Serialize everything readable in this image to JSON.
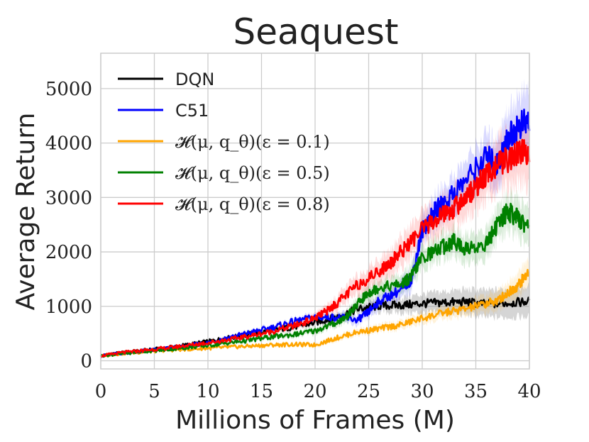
{
  "chart_data": {
    "type": "line",
    "title": "Seaquest",
    "xlabel": "Millions of Frames (M)",
    "ylabel": "Average Return",
    "xlim": [
      0,
      40
    ],
    "ylim": [
      -150,
      5650
    ],
    "xticks": [
      0,
      5,
      10,
      15,
      20,
      25,
      30,
      35,
      40
    ],
    "yticks": [
      0,
      1000,
      2000,
      3000,
      4000,
      5000
    ],
    "grid": true,
    "legend_position": "top-left",
    "series": [
      {
        "name": "DQN",
        "color": "#000000",
        "x": [
          0,
          2,
          4,
          6,
          8,
          10,
          12,
          14,
          16,
          18,
          20,
          22,
          24,
          26,
          28,
          30,
          32,
          34,
          36,
          38,
          40
        ],
        "values": [
          90,
          150,
          190,
          230,
          290,
          350,
          420,
          490,
          560,
          620,
          700,
          800,
          950,
          1010,
          1020,
          1050,
          1070,
          1080,
          1040,
          1060,
          1090
        ],
        "band": [
          0,
          20,
          25,
          30,
          30,
          35,
          40,
          40,
          45,
          50,
          50,
          60,
          80,
          110,
          140,
          170,
          200,
          230,
          250,
          260,
          280
        ]
      },
      {
        "name": "C51",
        "color": "#0000ff",
        "x": [
          0,
          2,
          4,
          6,
          8,
          10,
          12,
          14,
          16,
          18,
          20,
          22,
          24,
          25,
          26,
          28,
          29,
          30,
          31,
          32,
          34,
          36,
          37,
          38,
          39,
          40
        ],
        "values": [
          90,
          140,
          180,
          220,
          270,
          330,
          430,
          520,
          610,
          720,
          800,
          800,
          750,
          900,
          1100,
          1300,
          1500,
          2400,
          2700,
          2900,
          3300,
          3750,
          3600,
          4100,
          4300,
          4400
        ],
        "band": [
          0,
          15,
          20,
          25,
          25,
          30,
          35,
          40,
          45,
          50,
          60,
          80,
          100,
          120,
          140,
          170,
          200,
          240,
          270,
          300,
          350,
          400,
          450,
          500,
          550,
          600
        ]
      },
      {
        "name": "𝓗(μ, q_θ)(ε = 0.1)",
        "color": "#ffa500",
        "x": [
          0,
          2,
          4,
          6,
          8,
          10,
          12,
          14,
          16,
          18,
          20,
          22,
          24,
          26,
          28,
          30,
          32,
          34,
          36,
          37,
          38,
          39,
          40
        ],
        "values": [
          90,
          130,
          160,
          190,
          210,
          230,
          250,
          270,
          290,
          300,
          290,
          420,
          530,
          590,
          660,
          780,
          880,
          950,
          1050,
          1100,
          1250,
          1400,
          1650
        ],
        "band": [
          0,
          15,
          20,
          20,
          25,
          25,
          30,
          30,
          35,
          35,
          40,
          50,
          60,
          70,
          80,
          100,
          120,
          140,
          160,
          180,
          200,
          230,
          250
        ]
      },
      {
        "name": "𝓗(μ, q_θ)(ε = 0.5)",
        "color": "#008000",
        "x": [
          0,
          2,
          4,
          6,
          8,
          10,
          12,
          14,
          16,
          18,
          20,
          22,
          23,
          24,
          25,
          26,
          28,
          29,
          30,
          32,
          33,
          34,
          36,
          37,
          38,
          39,
          40
        ],
        "values": [
          90,
          130,
          170,
          200,
          240,
          280,
          330,
          380,
          440,
          480,
          550,
          700,
          820,
          1050,
          1250,
          1350,
          1400,
          1550,
          1900,
          2100,
          2200,
          2050,
          2150,
          2500,
          2750,
          2600,
          2450
        ],
        "band": [
          0,
          15,
          20,
          20,
          25,
          30,
          35,
          40,
          45,
          50,
          60,
          80,
          100,
          120,
          140,
          150,
          170,
          190,
          210,
          230,
          250,
          260,
          280,
          300,
          320,
          340,
          360
        ]
      },
      {
        "name": "𝓗(μ, q_θ)(ε = 0.8)",
        "color": "#ff0000",
        "x": [
          0,
          2,
          4,
          6,
          8,
          10,
          12,
          14,
          16,
          18,
          20,
          21,
          22,
          24,
          26,
          27,
          28,
          30,
          32,
          33,
          34,
          35,
          36,
          37,
          38,
          39,
          40
        ],
        "values": [
          90,
          150,
          190,
          230,
          280,
          330,
          390,
          460,
          540,
          640,
          780,
          900,
          1050,
          1400,
          1650,
          1800,
          2000,
          2400,
          2700,
          2800,
          3000,
          3200,
          3400,
          3600,
          3700,
          3800,
          3850
        ],
        "band": [
          0,
          20,
          25,
          30,
          30,
          35,
          40,
          45,
          50,
          60,
          80,
          100,
          130,
          180,
          220,
          250,
          280,
          300,
          330,
          350,
          380,
          400,
          430,
          460,
          500,
          550,
          600
        ]
      }
    ]
  }
}
